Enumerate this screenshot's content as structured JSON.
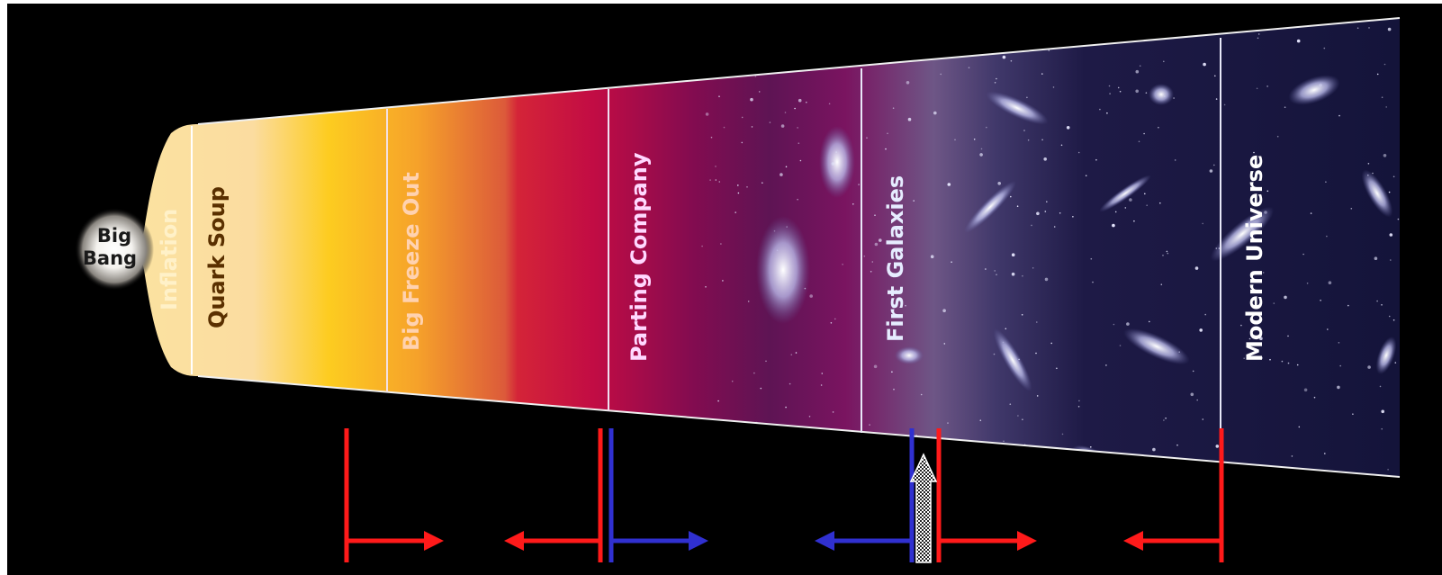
{
  "diagram": {
    "background_color": "#000000",
    "frame_color": "#ffffff",
    "marker_colors": {
      "red": "#ff1a1a",
      "blue": "#3030d0"
    },
    "big_bang": {
      "line1": "Big",
      "line2": "Bang"
    },
    "eras": [
      {
        "label": "Inflation",
        "color": "#fff1c8"
      },
      {
        "label": "Quark Soup",
        "color": "#5a3000"
      },
      {
        "label": "Big Freeze Out",
        "color": "#ffd2b0"
      },
      {
        "label": "Parting Company",
        "color": "#ffd8ff"
      },
      {
        "label": "First Galaxies",
        "color": "#e6ecff"
      },
      {
        "label": "Modern Universe",
        "color": "#ffffff"
      }
    ],
    "markers": [
      {
        "color": "red",
        "arrow": "right"
      },
      {
        "color": "red",
        "arrow": "left"
      },
      {
        "color": "blue",
        "arrow": "right"
      },
      {
        "color": "blue",
        "arrow": "left"
      },
      {
        "color": "red",
        "arrow": "right"
      },
      {
        "color": "red",
        "arrow": "left"
      }
    ],
    "up_arrow": {
      "fill": "dotted-black-white"
    }
  }
}
